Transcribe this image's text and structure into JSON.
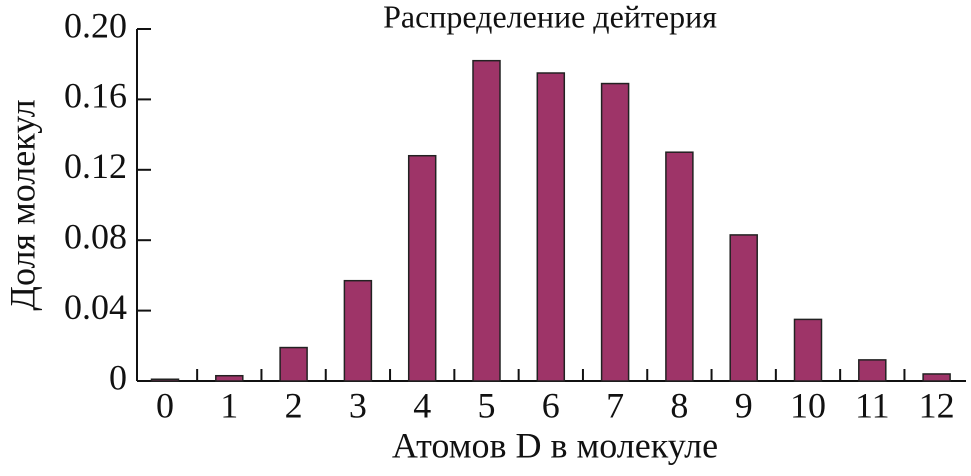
{
  "chart_data": {
    "type": "bar",
    "title": "Распределение дейтерия",
    "x_label": "Атомов D в молекуле",
    "y_label": "Доля молекул",
    "categories": [
      "0",
      "1",
      "2",
      "3",
      "4",
      "5",
      "6",
      "7",
      "8",
      "9",
      "10",
      "11",
      "12"
    ],
    "values": [
      0.001,
      0.003,
      0.019,
      0.057,
      0.128,
      0.182,
      0.175,
      0.169,
      0.13,
      0.083,
      0.035,
      0.012,
      0.004
    ],
    "color": "#9e3468",
    "ylim": [
      0,
      0.2
    ],
    "yticks": [
      0,
      0.04,
      0.08,
      0.12,
      0.16,
      {
        "value": 0.2,
        "label": "0.20"
      }
    ],
    "grid": false
  }
}
